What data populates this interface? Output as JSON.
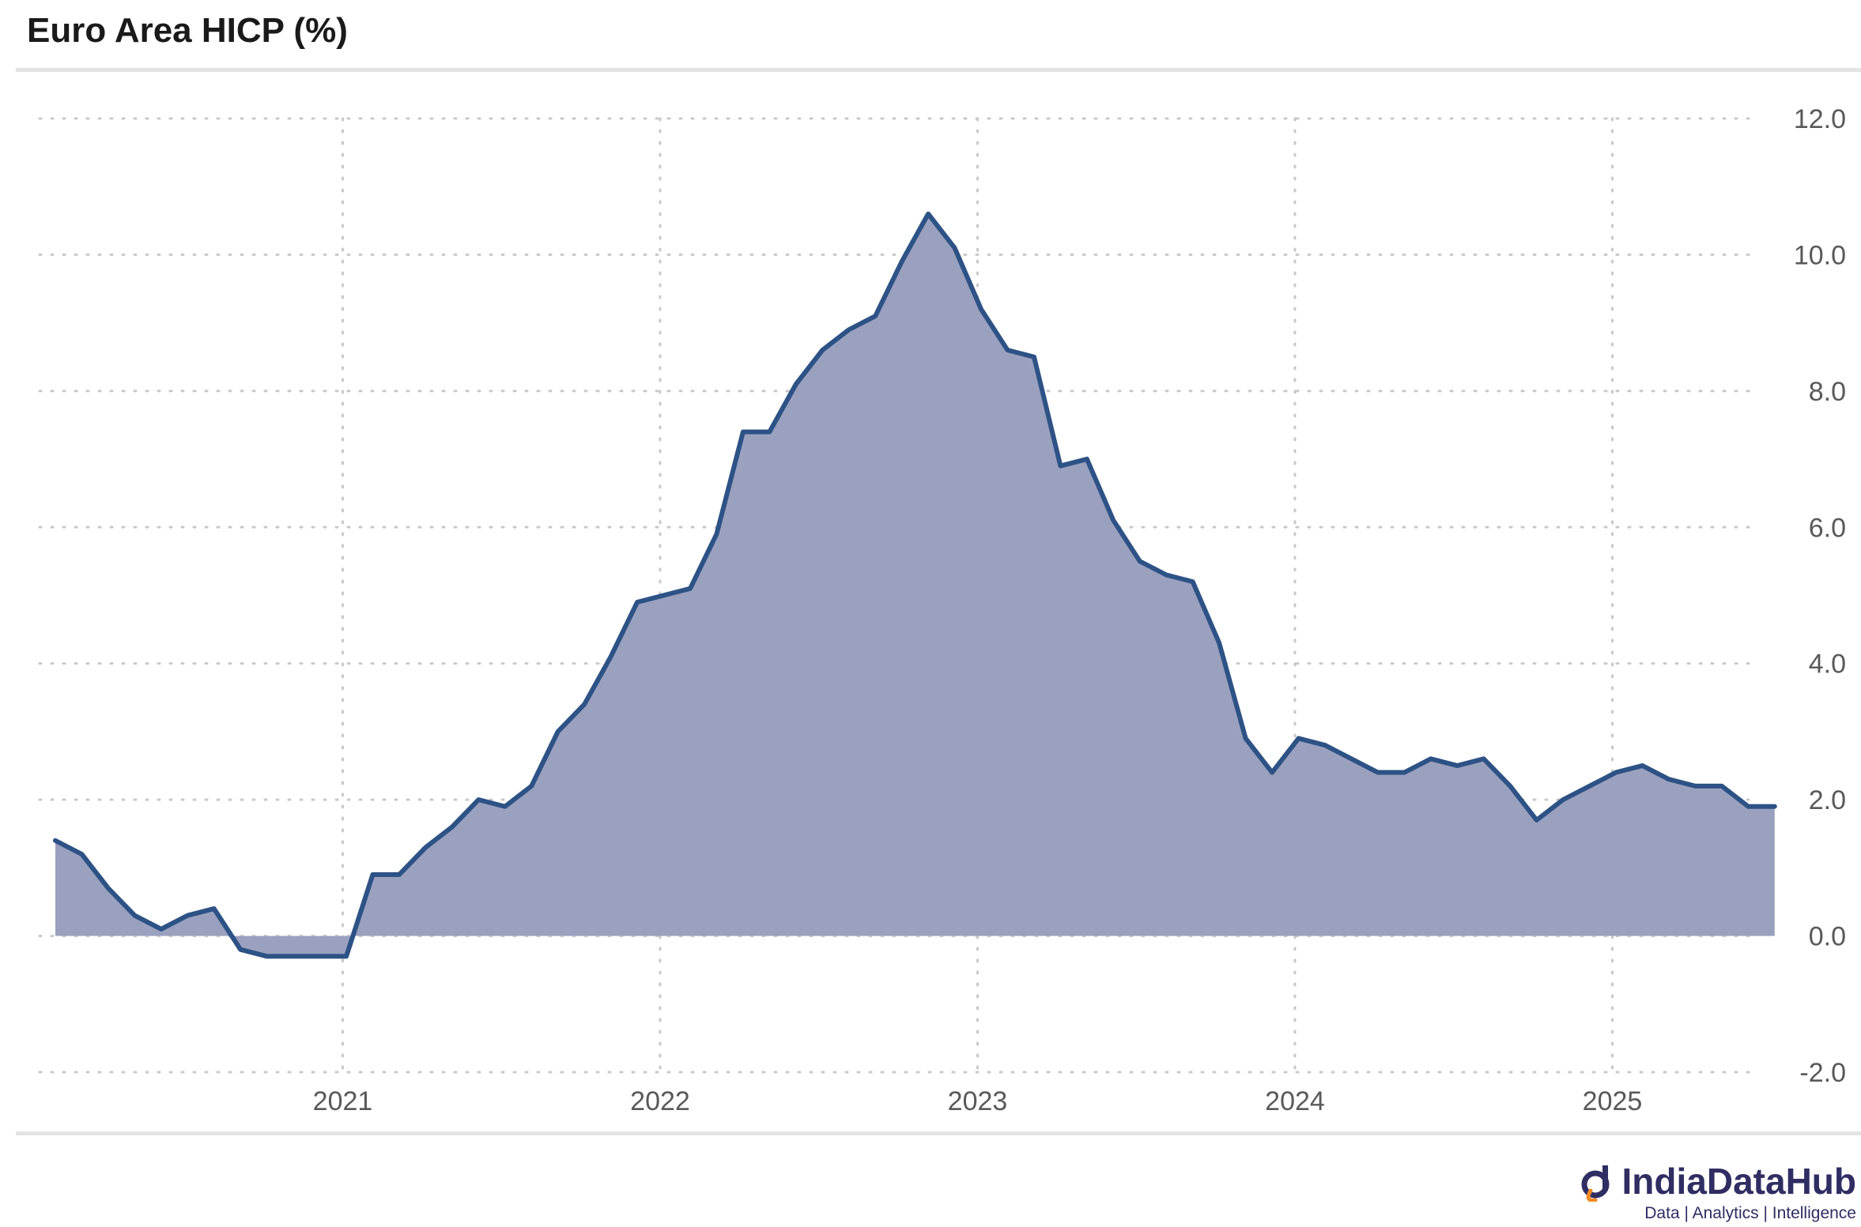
{
  "header": {
    "title": "Euro Area HICP (%)"
  },
  "brand": {
    "name": "IndiaDataHub",
    "tagline": "Data | Analytics | Intelligence"
  },
  "colors": {
    "line": "#2d5285",
    "fill": "#9aa1bf",
    "grid": "#c8c8c8",
    "axis_text": "#595959"
  },
  "chart_data": {
    "type": "area",
    "title": "Euro Area HICP (%)",
    "xlabel": "",
    "ylabel": "",
    "ylim": [
      -2.0,
      12.0
    ],
    "yticks": [
      "12.0",
      "10.0",
      "8.0",
      "6.0",
      "4.0",
      "2.0",
      "0.0",
      "-2.0"
    ],
    "ytick_values": [
      12,
      10,
      8,
      6,
      4,
      2,
      0,
      -2
    ],
    "xticks": [
      "2021",
      "2022",
      "2023",
      "2024",
      "2025"
    ],
    "grid": true,
    "y_axis_position": "right",
    "x_start": "2020-01",
    "x_end": "2025-06",
    "x": [
      "2020-01",
      "2020-02",
      "2020-03",
      "2020-04",
      "2020-05",
      "2020-06",
      "2020-07",
      "2020-08",
      "2020-09",
      "2020-10",
      "2020-11",
      "2020-12",
      "2021-01",
      "2021-02",
      "2021-03",
      "2021-04",
      "2021-05",
      "2021-06",
      "2021-07",
      "2021-08",
      "2021-09",
      "2021-10",
      "2021-11",
      "2021-12",
      "2022-01",
      "2022-02",
      "2022-03",
      "2022-04",
      "2022-05",
      "2022-06",
      "2022-07",
      "2022-08",
      "2022-09",
      "2022-10",
      "2022-11",
      "2022-12",
      "2023-01",
      "2023-02",
      "2023-03",
      "2023-04",
      "2023-05",
      "2023-06",
      "2023-07",
      "2023-08",
      "2023-09",
      "2023-10",
      "2023-11",
      "2023-12",
      "2024-01",
      "2024-02",
      "2024-03",
      "2024-04",
      "2024-05",
      "2024-06",
      "2024-07",
      "2024-08",
      "2024-09",
      "2024-10",
      "2024-11",
      "2024-12",
      "2025-01",
      "2025-02",
      "2025-03",
      "2025-04",
      "2025-05",
      "2025-06"
    ],
    "series": [
      {
        "values": [
          1.4,
          1.2,
          0.7,
          0.3,
          0.1,
          0.3,
          0.4,
          -0.2,
          -0.3,
          -0.3,
          -0.3,
          -0.3,
          0.9,
          0.9,
          1.3,
          1.6,
          2.0,
          1.9,
          2.2,
          3.0,
          3.4,
          4.1,
          4.9,
          5.0,
          5.1,
          5.9,
          7.4,
          7.4,
          8.1,
          8.6,
          8.9,
          9.1,
          9.9,
          10.6,
          10.1,
          9.2,
          8.6,
          8.5,
          6.9,
          7.0,
          6.1,
          5.5,
          5.3,
          5.2,
          4.3,
          2.9,
          2.4,
          2.9,
          2.8,
          2.6,
          2.4,
          2.4,
          2.6,
          2.5,
          2.6,
          2.2,
          1.7,
          2.0,
          2.2,
          2.4,
          2.5,
          2.3,
          2.2,
          2.2,
          1.9,
          1.9
        ]
      }
    ]
  }
}
